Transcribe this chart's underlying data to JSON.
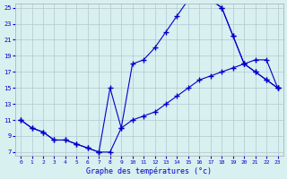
{
  "title": "Graphe des températures (°c)",
  "bg_color": "#d8f0f0",
  "grid_color": "#b0c8d0",
  "line_color": "#0000cc",
  "xmin": 0,
  "xmax": 23,
  "ymin": 7,
  "ymax": 25,
  "yticks": [
    7,
    9,
    11,
    13,
    15,
    17,
    19,
    21,
    23,
    25
  ],
  "xticks": [
    0,
    1,
    2,
    3,
    4,
    5,
    6,
    7,
    8,
    9,
    10,
    11,
    12,
    13,
    14,
    15,
    16,
    17,
    18,
    19,
    20,
    21,
    22,
    23
  ],
  "line1_x": [
    0,
    1,
    2,
    3,
    4,
    5,
    6,
    7,
    8,
    9,
    10,
    11,
    12,
    13,
    14,
    15,
    16,
    17,
    18,
    19,
    20,
    21,
    22,
    23
  ],
  "line1_y": [
    11,
    10,
    9.5,
    8.5,
    8.5,
    8,
    7.5,
    7,
    7,
    10,
    11,
    11.5,
    12,
    13,
    14,
    15,
    16,
    16.5,
    17,
    17.5,
    18,
    18.5,
    18.5,
    15
  ],
  "line2_x": [
    0,
    1,
    2,
    3,
    4,
    5,
    6,
    7,
    8,
    9,
    10,
    11,
    12,
    13,
    14,
    15,
    16,
    17,
    18,
    19,
    20,
    21,
    22,
    23
  ],
  "line2_y": [
    11,
    10,
    9.5,
    8.5,
    8.5,
    8,
    7.5,
    7,
    15,
    10,
    18,
    18.5,
    20,
    22,
    24,
    26,
    26,
    26,
    25,
    21.5,
    18,
    17,
    16,
    15
  ],
  "line3_x": [
    15,
    16,
    17,
    18,
    19,
    20,
    21,
    22,
    23
  ],
  "line3_y": [
    26,
    26.5,
    26,
    25,
    21.5,
    18,
    17,
    16,
    15
  ]
}
